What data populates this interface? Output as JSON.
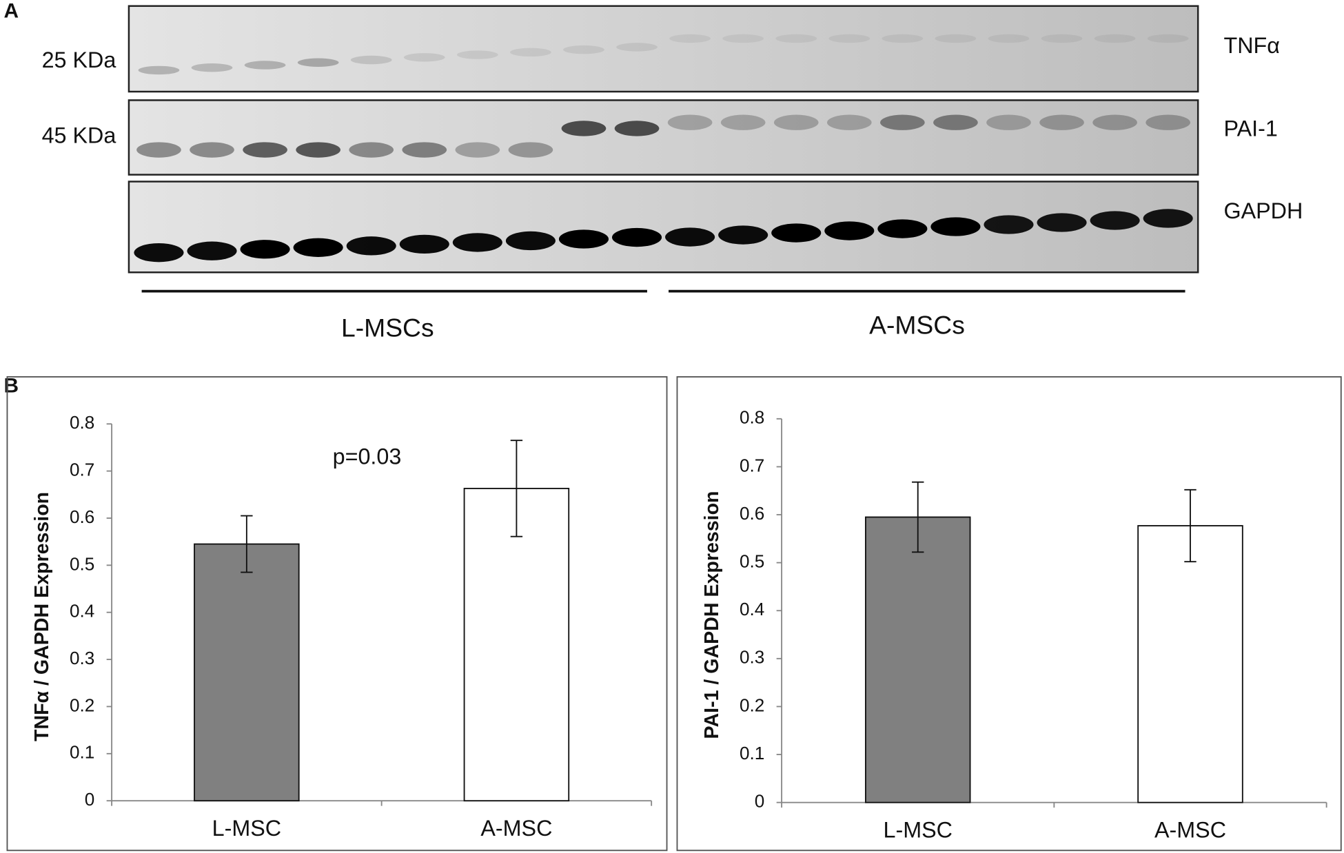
{
  "panel_a": {
    "label": "A",
    "markers": [
      "25 KDa",
      "45 KDa"
    ],
    "proteins": [
      "TNFα",
      "PAI-1",
      "GAPDH"
    ],
    "groups": [
      "L-MSCs",
      "A-MSCs"
    ]
  },
  "panel_b": {
    "label": "B"
  },
  "chart_data": [
    {
      "type": "bar",
      "y_label": "TNFα / GAPDH  Expression",
      "annotation": "p=0.03",
      "categories": [
        "L-MSC",
        "A-MSC"
      ],
      "values": [
        0.545,
        0.663
      ],
      "errors": [
        0.06,
        0.102
      ],
      "colors": [
        "#808080",
        "#ffffff"
      ],
      "ylim": [
        0,
        0.8
      ],
      "yticks": [
        0,
        0.1,
        0.2,
        0.3,
        0.4,
        0.5,
        0.6,
        0.7,
        0.8
      ]
    },
    {
      "type": "bar",
      "y_label": "PAI-1 / GAPDH Expression",
      "categories": [
        "L-MSC",
        "A-MSC"
      ],
      "values": [
        0.595,
        0.577
      ],
      "errors": [
        0.073,
        0.075
      ],
      "colors": [
        "#808080",
        "#ffffff"
      ],
      "ylim": [
        0,
        0.8
      ],
      "yticks": [
        0,
        0.1,
        0.2,
        0.3,
        0.4,
        0.5,
        0.6,
        0.7,
        0.8
      ]
    }
  ]
}
